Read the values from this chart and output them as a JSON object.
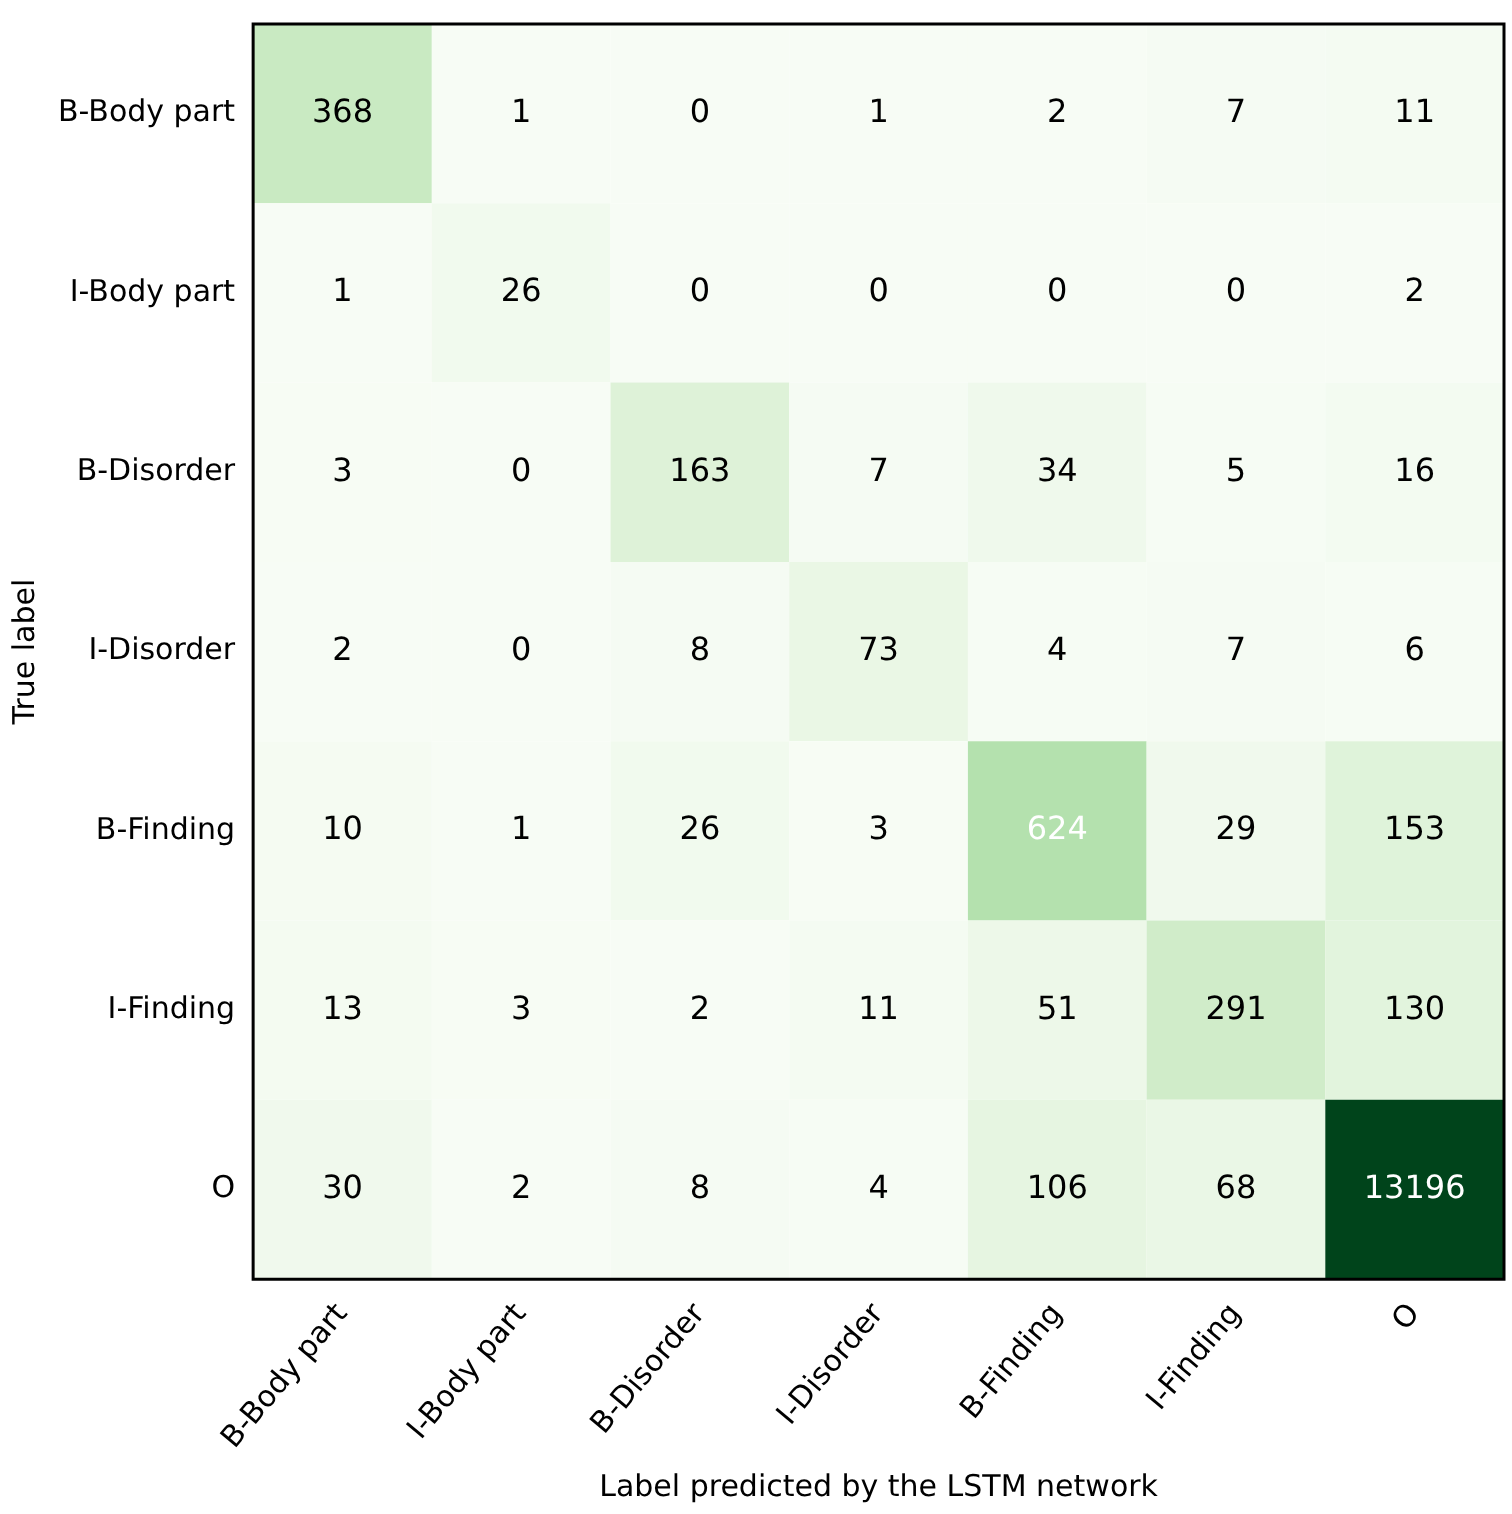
{
  "chart_data": {
    "type": "heatmap",
    "xlabel": "Label predicted by the LSTM network",
    "ylabel": "True label",
    "categories": [
      "B-Body part",
      "I-Body part",
      "B-Disorder",
      "I-Disorder",
      "B-Finding",
      "I-Finding",
      "O"
    ],
    "y_categories": [
      "B-Body part",
      "I-Body part",
      "B-Disorder",
      "I-Disorder",
      "B-Finding",
      "I-Finding",
      "O"
    ],
    "cells": [
      [
        368,
        1,
        0,
        1,
        2,
        7,
        11
      ],
      [
        1,
        26,
        0,
        0,
        0,
        0,
        2
      ],
      [
        3,
        0,
        163,
        7,
        34,
        5,
        16
      ],
      [
        2,
        0,
        8,
        73,
        4,
        7,
        6
      ],
      [
        10,
        1,
        26,
        3,
        624,
        29,
        153
      ],
      [
        13,
        3,
        2,
        11,
        51,
        291,
        130
      ],
      [
        30,
        2,
        8,
        4,
        106,
        68,
        13196
      ]
    ],
    "data_labels": true
  }
}
